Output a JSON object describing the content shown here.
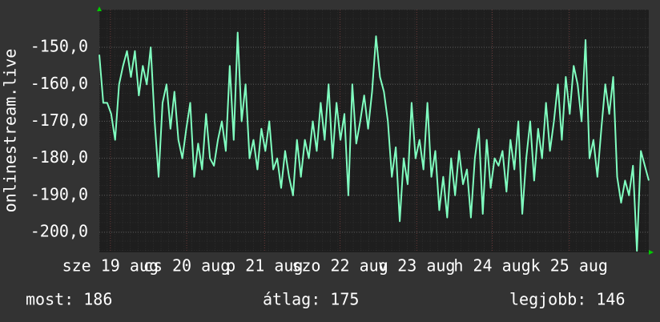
{
  "chart_data": {
    "type": "line",
    "y_axis_label": "onlinestream.live",
    "color": "#80ffc0",
    "values": [
      -152,
      -165,
      -165,
      -168,
      -175,
      -160,
      -155,
      -151,
      -158,
      -151,
      -163,
      -155,
      -160,
      -150,
      -170,
      -185,
      -165,
      -160,
      -172,
      -162,
      -175,
      -180,
      -172,
      -165,
      -185,
      -176,
      -183,
      -168,
      -180,
      -182,
      -175,
      -170,
      -178,
      -155,
      -175,
      -146,
      -170,
      -160,
      -180,
      -175,
      -183,
      -172,
      -178,
      -170,
      -183,
      -180,
      -188,
      -178,
      -185,
      -190,
      -175,
      -185,
      -175,
      -180,
      -170,
      -178,
      -165,
      -175,
      -160,
      -180,
      -165,
      -175,
      -168,
      -190,
      -160,
      -176,
      -170,
      -163,
      -172,
      -162,
      -147,
      -158,
      -162,
      -170,
      -185,
      -177,
      -197,
      -180,
      -187,
      -165,
      -180,
      -175,
      -183,
      -165,
      -185,
      -178,
      -194,
      -185,
      -196,
      -180,
      -190,
      -178,
      -187,
      -183,
      -196,
      -180,
      -172,
      -195,
      -175,
      -188,
      -180,
      -182,
      -178,
      -189,
      -175,
      -183,
      -170,
      -195,
      -180,
      -170,
      -186,
      -172,
      -180,
      -165,
      -178,
      -170,
      -160,
      -175,
      -158,
      -168,
      -155,
      -160,
      -170,
      -148,
      -180,
      -175,
      -185,
      -172,
      -160,
      -168,
      -158,
      -185,
      -192,
      -186,
      -190,
      -182,
      -205,
      -178,
      -182,
      -186
    ],
    "xlim": [
      0,
      139
    ],
    "xticks": [
      {
        "value": 2.8,
        "label": "sze 19 aug"
      },
      {
        "value": 22.1,
        "label": "cs 20 aug"
      },
      {
        "value": 41.8,
        "label": "p 21 aug"
      },
      {
        "value": 60.9,
        "label": "szo 22 aug"
      },
      {
        "value": 80.3,
        "label": "v 23 aug"
      },
      {
        "value": 99.4,
        "label": "h 24 aug"
      },
      {
        "value": 118.9,
        "label": "k 25 aug"
      }
    ],
    "ylim": [
      -205.4,
      -139.8
    ],
    "yticks": [
      {
        "value": -150,
        "label": "-150,0"
      },
      {
        "value": -160,
        "label": "-160,0"
      },
      {
        "value": -170,
        "label": "-170,0"
      },
      {
        "value": -180,
        "label": "-180,0"
      },
      {
        "value": -190,
        "label": "-190,0"
      },
      {
        "value": -200,
        "label": "-200,0"
      }
    ],
    "grid": true,
    "footer": [
      "most: 186",
      "átlag: 175",
      "legjobb: 146"
    ]
  }
}
